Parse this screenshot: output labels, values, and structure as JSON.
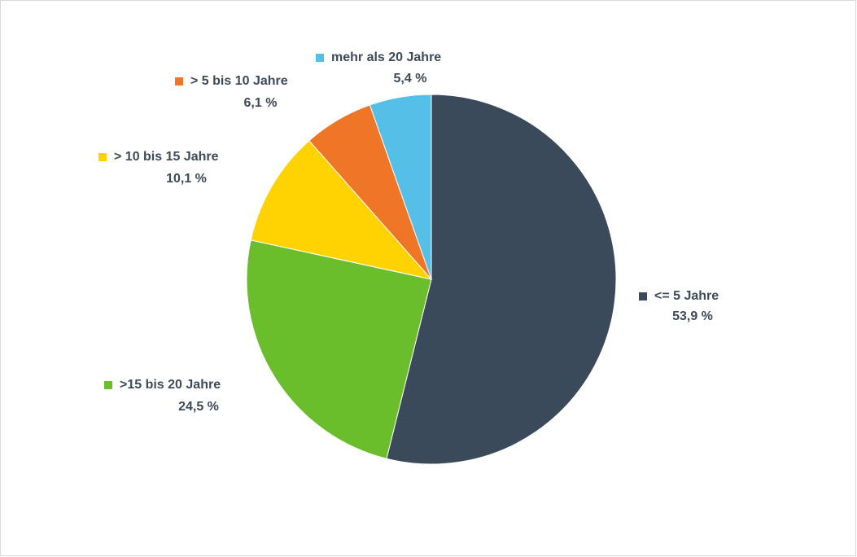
{
  "chart_data": {
    "type": "pie",
    "categories": [
      "<= 5 Jahre",
      ">15 bis 20 Jahre",
      "> 10 bis 15 Jahre",
      "> 5 bis 10 Jahre",
      "mehr als 20 Jahre"
    ],
    "values": [
      53.9,
      24.5,
      10.1,
      6.1,
      5.4
    ],
    "value_labels": [
      "53,9 %",
      "24,5 %",
      "10,1 %",
      "6,1 %",
      "5,4 %"
    ],
    "colors": [
      "#3a4a5a",
      "#6abd2b",
      "#ffd200",
      "#ef7527",
      "#56bfe8"
    ]
  }
}
